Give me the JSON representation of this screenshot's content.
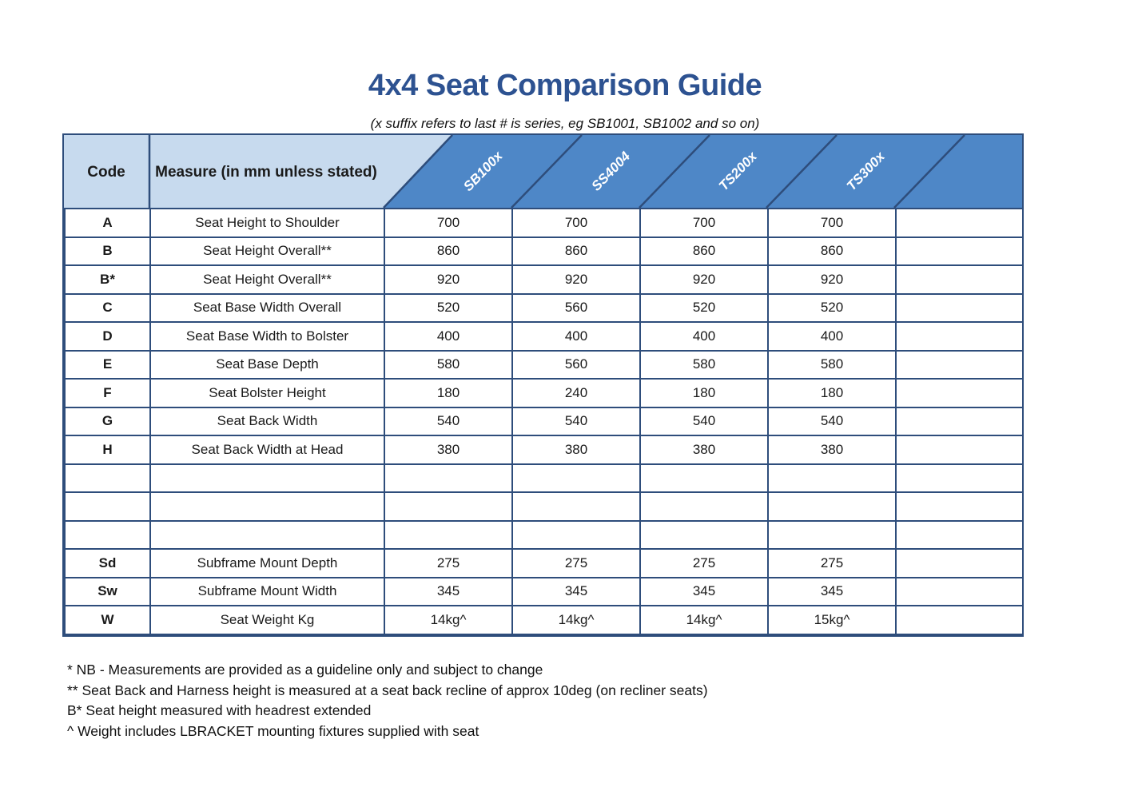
{
  "title": "4x4 Seat Comparison Guide",
  "subtitle": "(x suffix refers to last # is series, eg SB1001, SB1002 and so on)",
  "table": {
    "code_header": "Code",
    "measure_header": "Measure (in mm unless stated)",
    "products": [
      "SB100x",
      "SS4004",
      "TS200x",
      "TS300x",
      ""
    ],
    "rows": [
      {
        "code": "A",
        "measure": "Seat Height to Shoulder",
        "values": [
          "700",
          "700",
          "700",
          "700",
          ""
        ]
      },
      {
        "code": "B",
        "measure": "Seat Height Overall**",
        "values": [
          "860",
          "860",
          "860",
          "860",
          ""
        ]
      },
      {
        "code": "B*",
        "measure": "Seat Height Overall**",
        "values": [
          "920",
          "920",
          "920",
          "920",
          ""
        ]
      },
      {
        "code": "C",
        "measure": "Seat Base Width Overall",
        "values": [
          "520",
          "560",
          "520",
          "520",
          ""
        ]
      },
      {
        "code": "D",
        "measure": "Seat Base Width to Bolster",
        "values": [
          "400",
          "400",
          "400",
          "400",
          ""
        ]
      },
      {
        "code": "E",
        "measure": "Seat Base Depth",
        "values": [
          "580",
          "560",
          "580",
          "580",
          ""
        ]
      },
      {
        "code": "F",
        "measure": "Seat Bolster Height",
        "values": [
          "180",
          "240",
          "180",
          "180",
          ""
        ]
      },
      {
        "code": "G",
        "measure": "Seat Back Width",
        "values": [
          "540",
          "540",
          "540",
          "540",
          ""
        ]
      },
      {
        "code": "H",
        "measure": "Seat Back Width at Head",
        "values": [
          "380",
          "380",
          "380",
          "380",
          ""
        ]
      },
      {
        "code": "",
        "measure": "",
        "values": [
          "",
          "",
          "",
          "",
          ""
        ]
      },
      {
        "code": "",
        "measure": "",
        "values": [
          "",
          "",
          "",
          "",
          ""
        ]
      },
      {
        "code": "",
        "measure": "",
        "values": [
          "",
          "",
          "",
          "",
          ""
        ]
      },
      {
        "code": "Sd",
        "measure": "Subframe Mount Depth",
        "values": [
          "275",
          "275",
          "275",
          "275",
          ""
        ]
      },
      {
        "code": "Sw",
        "measure": "Subframe Mount Width",
        "values": [
          "345",
          "345",
          "345",
          "345",
          ""
        ]
      },
      {
        "code": "W",
        "measure": "Seat Weight Kg",
        "values": [
          "14kg^",
          "14kg^",
          "14kg^",
          "15kg^",
          ""
        ]
      }
    ]
  },
  "footnotes": [
    "* NB - Measurements are provided as a guideline only and subject to change",
    "** Seat Back and Harness height is measured at a seat back recline of approx 10deg (on recliner seats)",
    "B* Seat height measured with headrest extended",
    "^ Weight includes LBRACKET mounting fixtures supplied with seat"
  ],
  "colors": {
    "title_blue": "#2d5291",
    "header_light_blue": "#c7daee",
    "header_dark_blue": "#4e87c7",
    "table_border": "#2e4d7b"
  }
}
